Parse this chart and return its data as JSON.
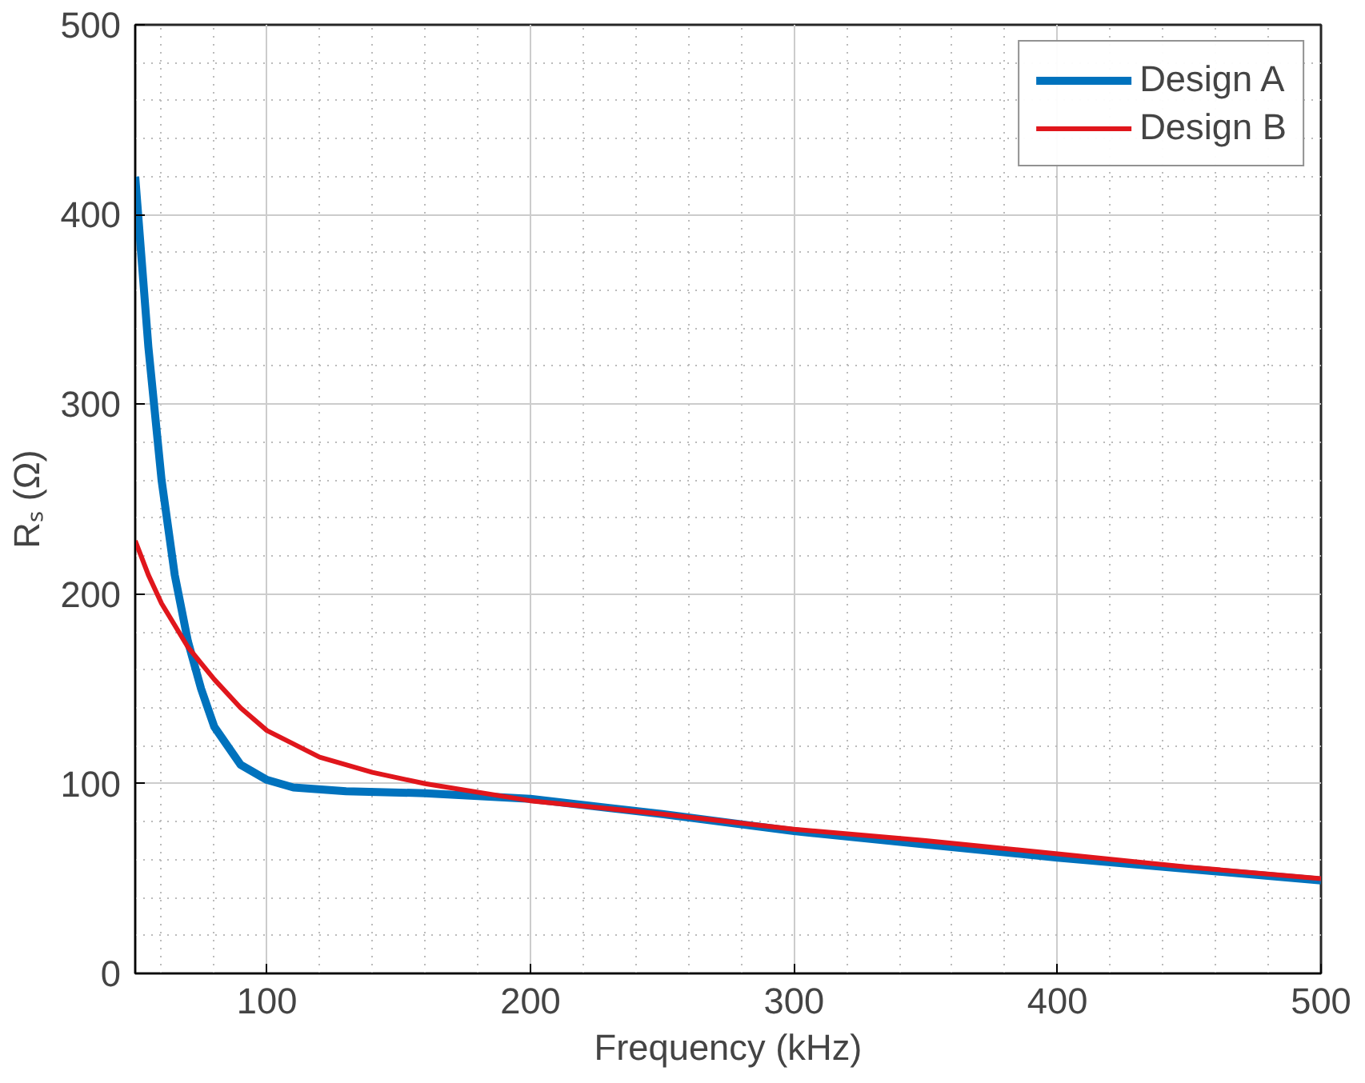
{
  "chart_data": {
    "type": "line",
    "xlabel": "Frequency (kHz)",
    "ylabel": "Rₛ (Ω)",
    "xlim": [
      50,
      500
    ],
    "ylim": [
      0,
      500
    ],
    "xticks": [
      100,
      200,
      300,
      400,
      500
    ],
    "yticks": [
      0,
      100,
      200,
      300,
      400,
      500
    ],
    "grid": true,
    "legend": "top right",
    "line_style": "solid",
    "series": [
      {
        "name": "Design A",
        "color": "#0072bd",
        "x": [
          50,
          55,
          60,
          65,
          70,
          75,
          80,
          90,
          100,
          110,
          130,
          160,
          200,
          250,
          300,
          350,
          400,
          450,
          500
        ],
        "values": [
          420,
          330,
          260,
          210,
          175,
          150,
          130,
          110,
          102,
          98,
          96,
          95,
          92,
          84,
          75,
          68,
          61,
          55,
          49
        ]
      },
      {
        "name": "Design B",
        "color": "#e0161c",
        "x": [
          50,
          55,
          60,
          70,
          80,
          90,
          100,
          120,
          140,
          160,
          200,
          250,
          300,
          350,
          400,
          450,
          500
        ],
        "values": [
          228,
          210,
          195,
          172,
          155,
          140,
          128,
          114,
          106,
          100,
          91,
          84,
          76,
          70,
          63,
          56,
          50
        ]
      }
    ]
  }
}
